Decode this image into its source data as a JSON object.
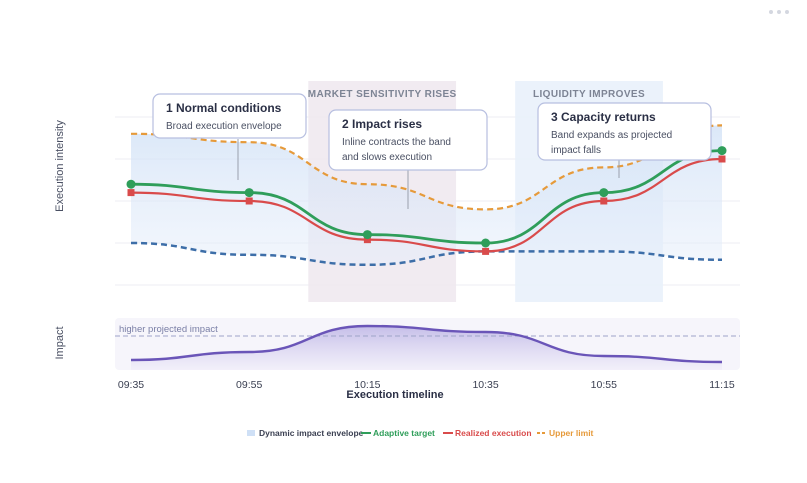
{
  "chart_data": {
    "type": "line",
    "xlabel": "Execution timeline",
    "ylabel": "Execution intensity",
    "x": [
      "09:35",
      "09:55",
      "10:15",
      "10:35",
      "10:55",
      "11:15"
    ],
    "series": [
      {
        "name": "Adaptive target",
        "color": "#2f9e5a",
        "values": [
          60,
          55,
          30,
          25,
          55,
          80
        ]
      },
      {
        "name": "Realized execution",
        "color": "#d94b4b",
        "values": [
          55,
          50,
          27,
          20,
          50,
          75
        ]
      },
      {
        "name": "Upper limit",
        "color": "#e69a3a",
        "values": [
          90,
          85,
          60,
          45,
          70,
          95
        ]
      }
    ],
    "envelope": {
      "name": "Dynamic impact envelope",
      "lower": [
        25,
        18,
        12,
        20,
        20,
        15
      ]
    },
    "regions": [
      {
        "label": "MARKET SENSITIVITY RISES",
        "from": "10:05",
        "to": "10:30"
      },
      {
        "label": "LIQUIDITY IMPROVES",
        "from": "10:40",
        "to": "11:05"
      }
    ],
    "annotations": [
      {
        "title": "1 Normal conditions",
        "text": [
          "Broad execution envelope"
        ]
      },
      {
        "title": "2 Impact rises",
        "text": [
          "Inline contracts the band",
          "and slows execution"
        ]
      },
      {
        "title": "3 Capacity returns",
        "text": [
          "Band expands as projected",
          "impact falls"
        ]
      }
    ],
    "impact_panel": {
      "ylabel": "Impact",
      "threshold_label": "higher projected impact",
      "values": [
        0.1,
        0.3,
        0.95,
        0.8,
        0.2,
        0.05
      ]
    },
    "legend_position": "bottom-center",
    "grid": true
  }
}
